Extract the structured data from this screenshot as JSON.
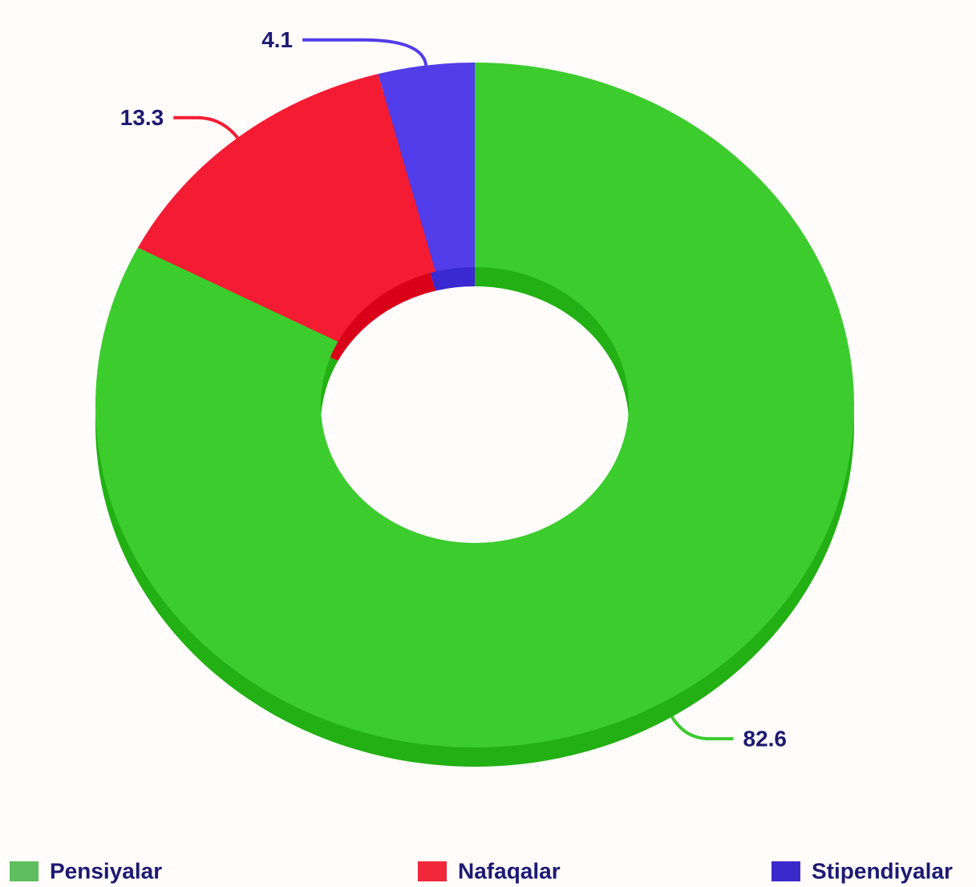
{
  "chart_data": {
    "type": "donut",
    "categories": [
      "Pensiyalar",
      "Nafaqalar",
      "Stipendiyalar"
    ],
    "values": [
      82.6,
      13.3,
      4.1
    ],
    "colors": [
      "#3dcc2e",
      "#f41c33",
      "#513dea"
    ],
    "depth_colors": [
      "#22b014",
      "#d90019",
      "#3a28d0"
    ],
    "legend_colors": [
      "#5dbf5d",
      "#f0283a",
      "#3a2acc"
    ],
    "legend": "bottom"
  }
}
